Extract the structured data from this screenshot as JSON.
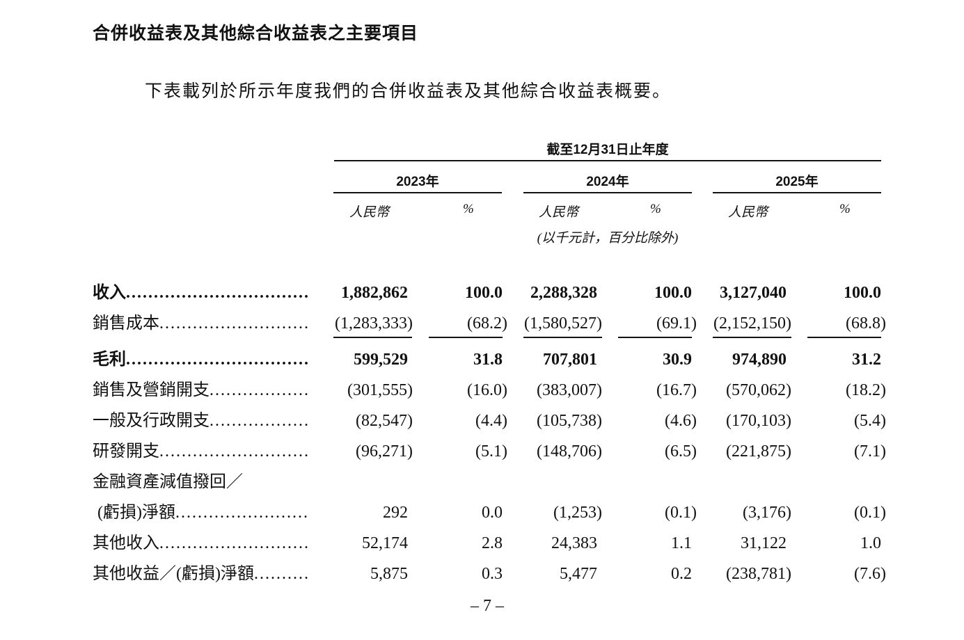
{
  "title": "合併收益表及其他綜合收益表之主要項目",
  "intro": "下表載列於所示年度我們的合併收益表及其他綜合收益表概要。",
  "table": {
    "period": "截至12月31日止年度",
    "years": [
      "2023年",
      "2024年",
      "2025年"
    ],
    "subheaders": [
      "人民幣",
      "%",
      "人民幣",
      "%",
      "人民幣",
      "%"
    ],
    "unit_note": "(以千元計，百分比除外)",
    "rows": [
      {
        "label": "收入",
        "values": [
          "1,882,862",
          "100.0",
          "2,288,328",
          "100.0",
          "3,127,040",
          "100.0"
        ]
      },
      {
        "label": "銷售成本",
        "values": [
          "(1,283,333)",
          "(68.2)",
          "(1,580,527)",
          "(69.1)",
          "(2,152,150)",
          "(68.8)"
        ]
      },
      {
        "label": "毛利",
        "values": [
          "599,529",
          "31.8",
          "707,801",
          "30.9",
          "974,890",
          "31.2"
        ]
      },
      {
        "label": "銷售及營銷開支",
        "values": [
          "(301,555)",
          "(16.0)",
          "(383,007)",
          "(16.7)",
          "(570,062)",
          "(18.2)"
        ]
      },
      {
        "label": "一般及行政開支",
        "values": [
          "(82,547)",
          "(4.4)",
          "(105,738)",
          "(4.6)",
          "(170,103)",
          "(5.4)"
        ]
      },
      {
        "label": "研發開支",
        "values": [
          "(96,271)",
          "(5.1)",
          "(148,706)",
          "(6.5)",
          "(221,875)",
          "(7.1)"
        ]
      },
      {
        "label": "金融資產減值撥回／"
      },
      {
        "label": "(虧損)淨額",
        "values": [
          "292",
          "0.0",
          "(1,253)",
          "(0.1)",
          "(3,176)",
          "(0.1)"
        ]
      },
      {
        "label": "其他收入",
        "values": [
          "52,174",
          "2.8",
          "24,383",
          "1.1",
          "31,122",
          "1.0"
        ]
      },
      {
        "label": "其他收益／(虧損)淨額",
        "values": [
          "5,875",
          "0.3",
          "5,477",
          "0.2",
          "(238,781)",
          "(7.6)"
        ]
      }
    ]
  },
  "page_number": "– 7 –"
}
